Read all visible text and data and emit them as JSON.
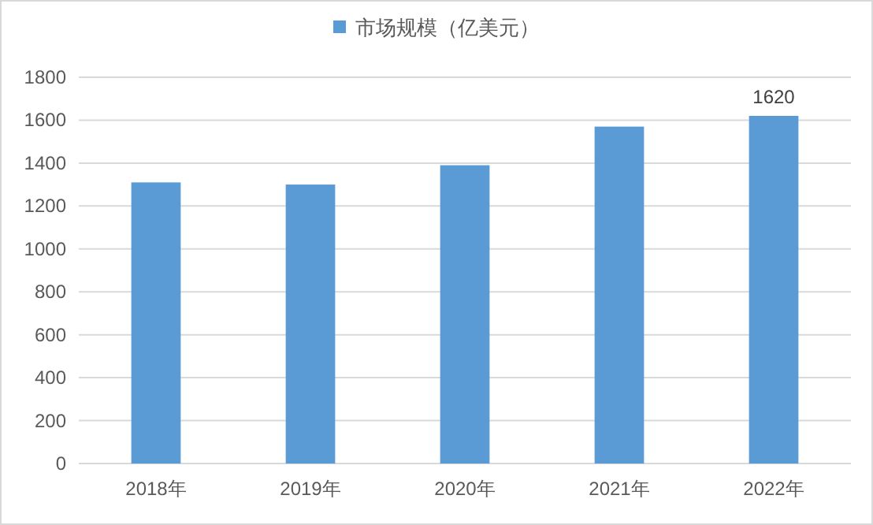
{
  "chart_data": {
    "type": "bar",
    "categories": [
      "2018年",
      "2019年",
      "2020年",
      "2021年",
      "2022年"
    ],
    "series": [
      {
        "name": "市场规模（亿美元）",
        "color": "#5b9bd5",
        "values": [
          1310,
          1300,
          1390,
          1570,
          1620
        ]
      }
    ],
    "value_labels": [
      null,
      null,
      null,
      null,
      "1620"
    ],
    "ylim": [
      0,
      1800
    ],
    "yticks": [
      0,
      200,
      400,
      600,
      800,
      1000,
      1200,
      1400,
      1600,
      1800
    ],
    "grid": "y",
    "legend": "top"
  }
}
